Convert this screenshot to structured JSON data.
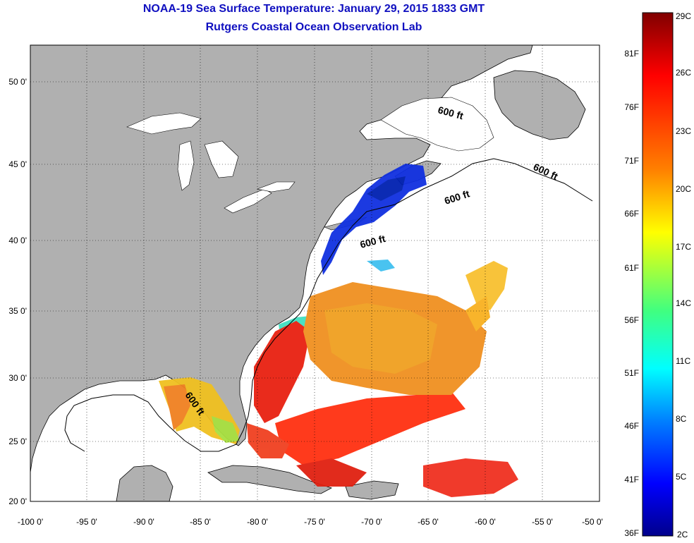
{
  "title": "NOAA-19 Sea Surface Temperature:  January 29, 2015 1833 GMT",
  "subtitle": "Rutgers Coastal Ocean Observation Lab",
  "map": {
    "lat_range": [
      20,
      52.5
    ],
    "lon_range": [
      -100,
      -50
    ],
    "lat_labels": [
      "50 0'",
      "45 0'",
      "40 0'",
      "35 0'",
      "30 0'",
      "25 0'",
      "20 0'"
    ],
    "lon_labels": [
      "-100 0'",
      "-95 0'",
      "-90 0'",
      "-85 0'",
      "-80 0'",
      "-75 0'",
      "-70 0'",
      "-65 0'",
      "-60 0'",
      "-55 0'",
      "-50 0'"
    ],
    "land_color": "#b0b0b0",
    "no_data_color": "#ffffff",
    "gridlines": "dotted",
    "contour_labels": [
      "600 ft",
      "600 ft",
      "600 ft",
      "600 ft",
      "600 ft"
    ]
  },
  "colorbar": {
    "celsius_labels": [
      "29C",
      "26C",
      "23C",
      "20C",
      "17C",
      "14C",
      "11C",
      "8C",
      "5C",
      "2C"
    ],
    "fahrenheit_labels": [
      "81F",
      "76F",
      "71F",
      "66F",
      "61F",
      "56F",
      "51F",
      "46F",
      "41F",
      "36F"
    ],
    "colors": [
      "#800000",
      "#ff0000",
      "#ff8000",
      "#ffff00",
      "#80ff80",
      "#00ffff",
      "#0080ff",
      "#0000ff",
      "#000090"
    ]
  }
}
